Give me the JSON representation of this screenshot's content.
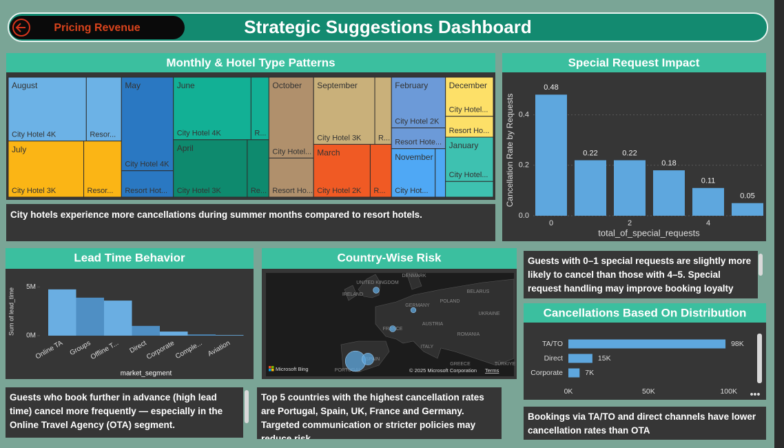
{
  "header": {
    "button": "Pricing Revenue",
    "title": "Strategic Suggestions Dashboard"
  },
  "chart_data": [
    {
      "type": "treemap",
      "title": "Monthly & Hotel Type Patterns",
      "groups": [
        {
          "name": "August",
          "color": "#6cb2e6",
          "tiles": [
            {
              "label": "City Hotel 4K",
              "value": 4000
            },
            {
              "label": "Resor...",
              "value": 1800
            }
          ]
        },
        {
          "name": "July",
          "color": "#fbb515",
          "tiles": [
            {
              "label": "City Hotel 3K",
              "value": 3400
            },
            {
              "label": "Resor...",
              "value": 1700
            }
          ]
        },
        {
          "name": "May",
          "color": "#2a78c2",
          "tiles": [
            {
              "label": "City Hotel 4K",
              "value": 3900
            },
            {
              "label": "Resort Hot...",
              "value": 1100
            }
          ]
        },
        {
          "name": "June",
          "color": "#12b095",
          "tiles": [
            {
              "label": "City Hotel 4K",
              "value": 3900
            },
            {
              "label": "R...",
              "value": 900
            }
          ]
        },
        {
          "name": "April",
          "color": "#0e8a6e",
          "tiles": [
            {
              "label": "City Hotel 3K",
              "value": 3400
            },
            {
              "label": "Re...",
              "value": 1000
            }
          ]
        },
        {
          "name": "October",
          "color": "#b0906c",
          "tiles": [
            {
              "label": "City Hotel...",
              "value": 2900
            },
            {
              "label": "Resort Ho...",
              "value": 1400
            }
          ]
        },
        {
          "name": "September",
          "color": "#c9b07a",
          "tiles": [
            {
              "label": "City Hotel 3K",
              "value": 3300
            },
            {
              "label": "R...",
              "value": 900
            }
          ]
        },
        {
          "name": "March",
          "color": "#f05a24",
          "tiles": [
            {
              "label": "City Hotel 2K",
              "value": 2400
            },
            {
              "label": "R...",
              "value": 900
            }
          ]
        },
        {
          "name": "February",
          "color": "#6c9ad8",
          "tiles": [
            {
              "label": "City Hotel 2K",
              "value": 2200
            },
            {
              "label": "Resort Hote...",
              "value": 900
            }
          ]
        },
        {
          "name": "November",
          "color": "#4fa8f5",
          "tiles": [
            {
              "label": "City Hot...",
              "value": 1700
            },
            {
              "label": null,
              "value": 400
            }
          ]
        },
        {
          "name": "December",
          "color": "#fde068",
          "tiles": [
            {
              "label": "City Hotel...",
              "value": 1500
            },
            {
              "label": "Resort Ho...",
              "value": 800
            }
          ]
        },
        {
          "name": "January",
          "color": "#3ec1b0",
          "tiles": [
            {
              "label": "City Hotel...",
              "value": 1700
            },
            {
              "label": null,
              "value": 600
            }
          ]
        }
      ]
    },
    {
      "type": "bar",
      "title": "Special Request Impact",
      "x": [
        0,
        1,
        2,
        3,
        4,
        5
      ],
      "values": [
        0.48,
        0.22,
        0.22,
        0.18,
        0.11,
        0.05
      ],
      "color": "#5ea7de",
      "xlabel": "total_of_special_requests",
      "ylabel": "Cancellation Rate by Requests",
      "ylim": [
        0,
        0.5
      ],
      "yticks": [
        {
          "value": 0,
          "label": "0.0"
        },
        0.2,
        0.4
      ],
      "xticks": [
        0,
        2,
        4
      ],
      "grid": true
    },
    {
      "type": "area",
      "title": "Lead Time Behavior",
      "categories": [
        "Online TA",
        "Groups",
        "Offline T...",
        "Direct",
        "Corporate",
        "Comple...",
        "Aviation"
      ],
      "values": [
        4750000,
        3900000,
        3600000,
        1000000,
        420000,
        120000,
        60000
      ],
      "colors": [
        "#6aaee2",
        "#4f8fc4"
      ],
      "xlabel": "market_segment",
      "ylabel": "Sum of lead_time",
      "ylim": [
        0,
        5800000
      ],
      "yticks": [
        {
          "value": 0,
          "label": "0M"
        },
        {
          "value": 5000000,
          "label": "5M"
        }
      ]
    },
    {
      "type": "map",
      "title": "Country-Wise Risk",
      "categories": [
        "PORTUGAL",
        "SPAIN",
        "FRANCE",
        "UNITED KINGDOM",
        "GERMANY"
      ],
      "values": [
        27000,
        9000,
        2500,
        2400,
        1800
      ],
      "color": "#5ea7de",
      "labels": [
        "DENMARK",
        "IRELAND",
        "POLAND",
        "BELARUS",
        "UKRAINE",
        "AUSTRIA",
        "ROMANIA",
        "ITALY",
        "GREECE",
        "TÜRKIYE"
      ],
      "attribution": "Microsoft Bing",
      "copyright": "© 2025 Microsoft Corporation",
      "terms": "Terms"
    },
    {
      "type": "hbar",
      "title": "Cancellations Based On Distribution",
      "categories": [
        "TA/TO",
        "Direct",
        "Corporate"
      ],
      "values": [
        98000,
        15000,
        7000
      ],
      "value_labels": [
        "98K",
        "15K",
        "7K"
      ],
      "color": "#5ea7de",
      "xlim": [
        0,
        110000
      ],
      "xticks": [
        {
          "value": 0,
          "label": "0K"
        },
        {
          "value": 50000,
          "label": "50K"
        },
        {
          "value": 100000,
          "label": "100K"
        }
      ]
    }
  ],
  "notes": [
    "City hotels experience more cancellations during summer months compared to resort hotels.",
    "Guests with 0–1 special requests are slightly more likely to cancel than those with 4–5. Special request handling may improve booking loyalty",
    "Guests who book further in advance (high lead time) cancel more frequently — especially in the Online Travel Agency (OTA) segment.",
    "Top 5 countries with the highest cancellation rates are Portugal, Spain, UK, France and Germany. Targeted communication or stricter policies may reduce risk.",
    "Bookings via TA/TO and direct channels have lower cancellation rates than OTA"
  ]
}
